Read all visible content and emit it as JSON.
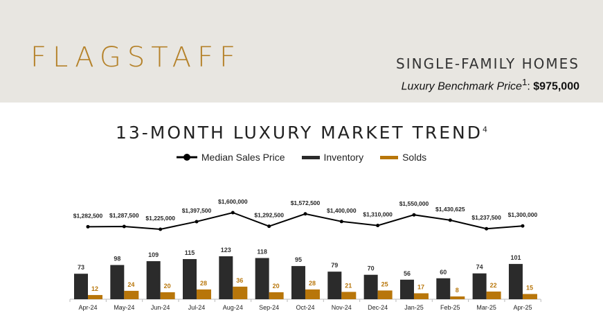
{
  "header": {
    "brand": "FLAGSTAFF",
    "subtype": "SINGLE-FAMILY HOMES",
    "benchmark_label": "Luxury Benchmark Price",
    "benchmark_sup": "1",
    "benchmark_sep": ": ",
    "benchmark_value": "$975,000"
  },
  "colors": {
    "header_bg": "#e8e6e1",
    "brand": "#b5822a",
    "inventory": "#2b2b2b",
    "solds": "#b8760a",
    "line": "#000000"
  },
  "chart_data": {
    "type": "bar+line",
    "title": "13-MONTH LUXURY MARKET TREND",
    "title_sup": "4",
    "legend_placement": "top",
    "categories": [
      "Apr-24",
      "May-24",
      "Jun-24",
      "Jul-24",
      "Aug-24",
      "Sep-24",
      "Oct-24",
      "Nov-24",
      "Dec-24",
      "Jan-25",
      "Feb-25",
      "Mar-25",
      "Apr-25"
    ],
    "series": [
      {
        "name": "Median Sales Price",
        "type": "line",
        "values": [
          1282500,
          1287500,
          1225000,
          1397500,
          1600000,
          1292500,
          1572500,
          1400000,
          1310000,
          1550000,
          1430625,
          1237500,
          1300000
        ],
        "labels": [
          "$1,282,500",
          "$1,287,500",
          "$1,225,000",
          "$1,397,500",
          "$1,600,000",
          "$1,292,500",
          "$1,572,500",
          "$1,400,000",
          "$1,310,000",
          "$1,550,000",
          "$1,430,625",
          "$1,237,500",
          "$1,300,000"
        ]
      },
      {
        "name": "Inventory",
        "type": "bar",
        "values": [
          73,
          98,
          109,
          115,
          123,
          118,
          95,
          79,
          70,
          56,
          60,
          74,
          101
        ]
      },
      {
        "name": "Solds",
        "type": "bar",
        "values": [
          12,
          24,
          20,
          28,
          36,
          20,
          28,
          21,
          25,
          17,
          8,
          22,
          15
        ]
      }
    ],
    "grid": false
  }
}
